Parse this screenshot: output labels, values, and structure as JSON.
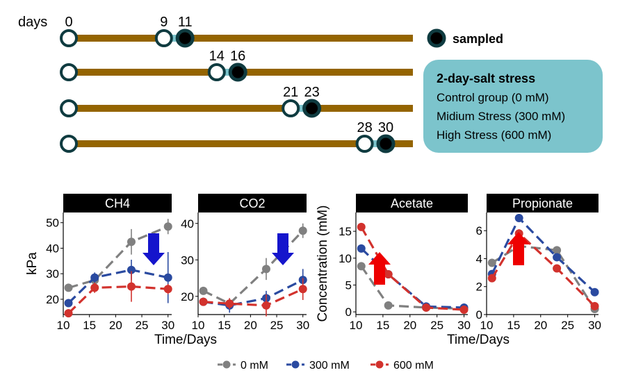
{
  "timeline": {
    "axis_label": "days",
    "rows": [
      {
        "start": "0",
        "mid": "9",
        "end": "11"
      },
      {
        "mid": "14",
        "end": "16"
      },
      {
        "mid": "21",
        "end": "23"
      },
      {
        "mid": "28",
        "end": "30"
      }
    ],
    "sampled_label": "sampled",
    "colors": {
      "bar": "#946400",
      "highlight": "#7cc4cc",
      "ring": "#0f3b40"
    }
  },
  "info_box": {
    "title": "2-day-salt stress",
    "lines": [
      "Control group (0 mM)",
      "Midium Stress (300 mM)",
      "High Stress (600 mM)"
    ],
    "color": "#7cc4cc"
  },
  "chart_data": [
    {
      "type": "line",
      "panel": "CH4",
      "ylabel": "kPa",
      "ylim": [
        14,
        54
      ],
      "yticks": [
        "20",
        "30",
        "40",
        "50"
      ],
      "ytick_values": [
        20,
        30,
        40,
        50
      ],
      "x": [
        11,
        16,
        23,
        30
      ],
      "xticks": [
        "10",
        "15",
        "20",
        "25",
        "30"
      ],
      "series": [
        {
          "name": "0 mM",
          "values": [
            24.5,
            27.5,
            42.5,
            48.5
          ],
          "err": [
            1,
            1.5,
            5,
            3
          ]
        },
        {
          "name": "300 mM",
          "values": [
            18.5,
            28.5,
            31.5,
            28.5
          ],
          "err": [
            1,
            2,
            4,
            10
          ]
        },
        {
          "name": "600 mM",
          "values": [
            14.5,
            24.5,
            25,
            24
          ],
          "err": [
            1,
            2,
            6,
            2
          ]
        }
      ],
      "arrow": {
        "direction": "down",
        "color": "#1515cc"
      }
    },
    {
      "type": "line",
      "panel": "CO2",
      "ylabel": "",
      "ylim": [
        15,
        43
      ],
      "yticks": [
        "20",
        "30",
        "40"
      ],
      "ytick_values": [
        20,
        30,
        40
      ],
      "x": [
        11,
        16,
        23,
        30
      ],
      "xticks": [
        "10",
        "15",
        "20",
        "25",
        "30"
      ],
      "series": [
        {
          "name": "0 mM",
          "values": [
            21.5,
            18,
            27.5,
            38
          ],
          "err": [
            1,
            1,
            3,
            2
          ]
        },
        {
          "name": "300 mM",
          "values": [
            18.5,
            17.5,
            19.5,
            24.5
          ],
          "err": [
            1,
            2,
            2,
            3
          ]
        },
        {
          "name": "600 mM",
          "values": [
            18.5,
            18,
            17.5,
            22
          ],
          "err": [
            1,
            1.5,
            3,
            3
          ]
        }
      ],
      "arrow": {
        "direction": "down",
        "color": "#1515cc"
      }
    },
    {
      "type": "line",
      "panel": "Acetate",
      "ylabel": "Concentration (mM)",
      "ylim": [
        -0.5,
        18.5
      ],
      "yticks": [
        "0",
        "5",
        "10",
        "15"
      ],
      "ytick_values": [
        0,
        5,
        10,
        15
      ],
      "x": [
        11,
        16,
        23,
        30
      ],
      "xticks": [
        "10",
        "15",
        "20",
        "25",
        "30"
      ],
      "series": [
        {
          "name": "0 mM",
          "values": [
            8.5,
            1.2,
            0.8,
            0.6
          ],
          "err": [
            0.6,
            0.3,
            0.3,
            0.2
          ]
        },
        {
          "name": "300 mM",
          "values": [
            11.8,
            7,
            1,
            0.8
          ],
          "err": [
            0.5,
            0.5,
            0.3,
            0.2
          ]
        },
        {
          "name": "600 mM",
          "values": [
            15.8,
            7,
            0.8,
            0.4
          ],
          "err": [
            0.5,
            0.5,
            0.3,
            0.2
          ]
        }
      ],
      "arrow": {
        "direction": "up",
        "color": "#ee0000"
      }
    },
    {
      "type": "line",
      "panel": "Propionate",
      "ylabel": "",
      "ylim": [
        0,
        7.3
      ],
      "yticks": [
        "0",
        "2",
        "4",
        "6"
      ],
      "ytick_values": [
        0,
        2,
        4,
        6
      ],
      "x": [
        11,
        16,
        23,
        30
      ],
      "xticks": [
        "10",
        "15",
        "20",
        "25",
        "30"
      ],
      "series": [
        {
          "name": "0 mM",
          "values": [
            3.7,
            4.9,
            4.6,
            0.4
          ],
          "err": [
            0.2,
            0.2,
            0.2,
            0.2
          ]
        },
        {
          "name": "300 mM",
          "values": [
            2.9,
            6.9,
            4.1,
            1.6
          ],
          "err": [
            0.2,
            0.2,
            0.2,
            0.2
          ]
        },
        {
          "name": "600 mM",
          "values": [
            2.6,
            5.8,
            3.3,
            0.6
          ],
          "err": [
            0.2,
            0.3,
            0.2,
            0.2
          ]
        }
      ],
      "arrow": {
        "direction": "up",
        "color": "#ee0000"
      }
    }
  ],
  "xlabel": "Time/Days",
  "legend": {
    "placement": "bottom",
    "items": [
      {
        "label": "0 mM",
        "color": "#808080"
      },
      {
        "label": "300 mM",
        "color": "#2a4aa0"
      },
      {
        "label": "600 mM",
        "color": "#d2322d"
      }
    ]
  }
}
